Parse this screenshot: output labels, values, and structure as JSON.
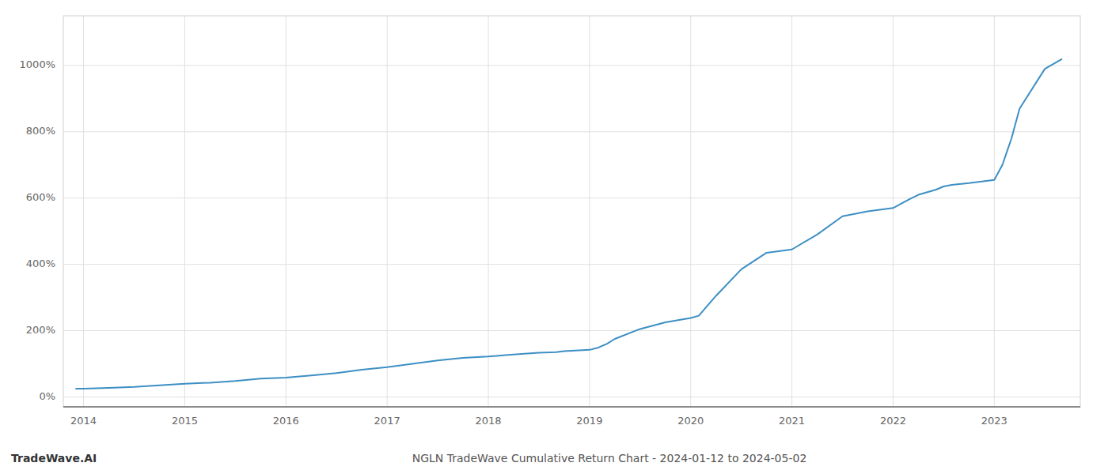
{
  "chart_data": {
    "type": "line",
    "title": "NGLN TradeWave Cumulative Return Chart - 2024-01-12 to 2024-05-02",
    "annotations": [
      "TradeWave.AI"
    ],
    "color": "#3d8fc4",
    "grid": true,
    "x": [
      2013.92,
      2014.0,
      2014.25,
      2014.5,
      2014.75,
      2015.0,
      2015.25,
      2015.5,
      2015.75,
      2016.0,
      2016.25,
      2016.5,
      2016.75,
      2017.0,
      2017.25,
      2017.5,
      2017.75,
      2018.0,
      2018.08,
      2018.17,
      2018.25,
      2018.33,
      2018.5,
      2018.67,
      2018.75,
      2019.0,
      2019.08,
      2019.17,
      2019.25,
      2019.5,
      2019.75,
      2020.0,
      2020.08,
      2020.25,
      2020.5,
      2020.75,
      2021.0,
      2021.25,
      2021.5,
      2021.75,
      2022.0,
      2022.17,
      2022.25,
      2022.42,
      2022.5,
      2022.58,
      2022.75,
      2022.83,
      2023.0,
      2023.08,
      2023.17,
      2023.25,
      2023.5,
      2023.67
    ],
    "values": [
      25,
      25,
      27,
      30,
      35,
      40,
      43,
      48,
      55,
      58,
      65,
      72,
      82,
      90,
      100,
      110,
      118,
      122,
      124,
      126,
      128,
      130,
      133,
      135,
      138,
      142,
      148,
      160,
      175,
      205,
      225,
      238,
      245,
      305,
      385,
      435,
      445,
      490,
      545,
      560,
      570,
      598,
      610,
      625,
      635,
      640,
      645,
      648,
      655,
      700,
      780,
      870,
      990,
      1020
    ],
    "xlim": [
      2013.8,
      2023.85
    ],
    "ylim": [
      -30,
      1150
    ],
    "xticks": [
      2014,
      2015,
      2016,
      2017,
      2018,
      2019,
      2020,
      2021,
      2022,
      2023
    ],
    "yticks": [
      {
        "value": 0,
        "label": "0%"
      },
      {
        "value": 200,
        "label": "200%"
      },
      {
        "value": 400,
        "label": "400%"
      },
      {
        "value": 600,
        "label": "600%"
      },
      {
        "value": 800,
        "label": "800%"
      },
      {
        "value": 1000,
        "label": "1000%"
      }
    ]
  }
}
